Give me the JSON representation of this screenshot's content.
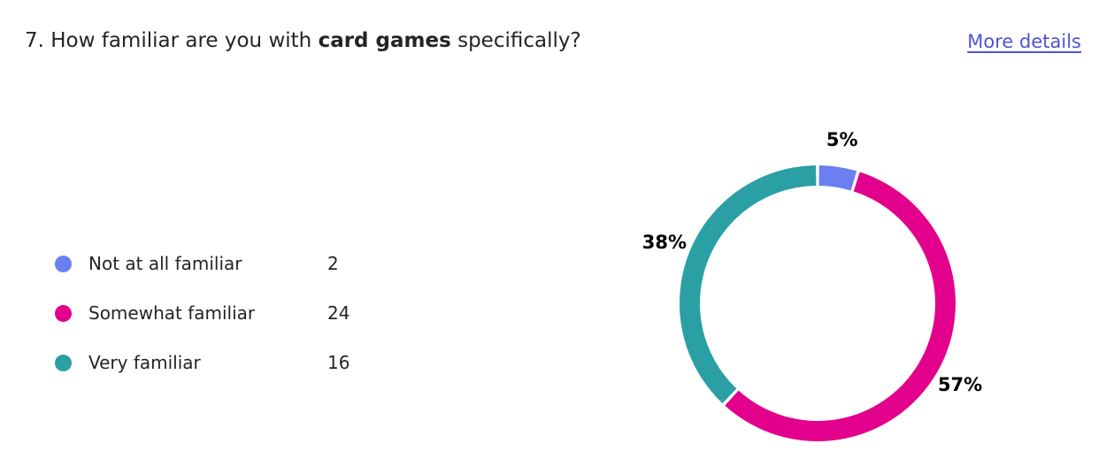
{
  "question": {
    "prefix": "7. How familiar are you with ",
    "bold": "card games",
    "suffix": " specifically?"
  },
  "more_details_label": "More details",
  "chart_data": {
    "type": "pie",
    "categories": [
      "Not at all familiar",
      "Somewhat familiar",
      "Very familiar"
    ],
    "values": [
      2,
      24,
      16
    ],
    "percent_labels": [
      "5%",
      "57%",
      "38%"
    ],
    "colors": [
      "#6b7ff0",
      "#e3008c",
      "#2aa0a4"
    ],
    "donut": true,
    "legend_position": "left"
  }
}
